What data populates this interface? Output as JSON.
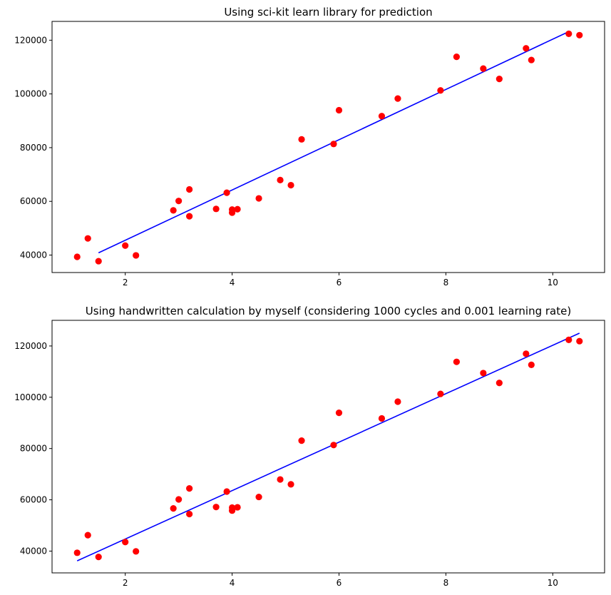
{
  "chart_data": [
    {
      "type": "scatter",
      "title": "Using sci-kit learn library for prediction",
      "xlabel": "",
      "ylabel": "",
      "xlim": [
        0.63,
        10.97
      ],
      "ylim": [
        33500,
        127000
      ],
      "xticks": [
        2,
        4,
        6,
        8,
        10
      ],
      "yticks": [
        40000,
        60000,
        80000,
        100000,
        120000
      ],
      "grid": false,
      "points_color": "#ff0000",
      "line_color": "#0000ff",
      "points": {
        "x": [
          1.1,
          1.3,
          1.5,
          2.0,
          2.2,
          2.9,
          3.0,
          3.2,
          3.2,
          3.7,
          3.9,
          4.0,
          4.0,
          4.1,
          4.5,
          4.9,
          5.1,
          5.3,
          5.9,
          6.0,
          6.8,
          7.1,
          7.9,
          8.2,
          8.7,
          9.0,
          9.5,
          9.6,
          10.3,
          10.5
        ],
        "y": [
          39343,
          46205,
          37731,
          43525,
          39891,
          56642,
          60150,
          54445,
          64445,
          57189,
          63218,
          55794,
          56957,
          57081,
          61111,
          67938,
          66029,
          83088,
          81363,
          93940,
          91738,
          98273,
          101302,
          113812,
          109431,
          105582,
          116969,
          112635,
          122391,
          121872
        ]
      },
      "fit_line": {
        "x": [
          1.5,
          10.3
        ],
        "y": [
          40836,
          123190
        ]
      }
    },
    {
      "type": "scatter",
      "title": "Using handwritten calculation by myself (considering 1000 cycles and 0.001 learning rate)",
      "xlabel": "",
      "ylabel": "",
      "xlim": [
        0.63,
        10.97
      ],
      "ylim": [
        31500,
        130000
      ],
      "xticks": [
        2,
        4,
        6,
        8,
        10
      ],
      "yticks": [
        40000,
        60000,
        80000,
        100000,
        120000
      ],
      "grid": false,
      "points_color": "#ff0000",
      "line_color": "#0000ff",
      "points": {
        "x": [
          1.1,
          1.3,
          1.5,
          2.0,
          2.2,
          2.9,
          3.0,
          3.2,
          3.2,
          3.7,
          3.9,
          4.0,
          4.0,
          4.1,
          4.5,
          4.9,
          5.1,
          5.3,
          5.9,
          6.0,
          6.8,
          7.1,
          7.9,
          8.2,
          8.7,
          9.0,
          9.5,
          9.6,
          10.3,
          10.5
        ],
        "y": [
          39343,
          46205,
          37731,
          43525,
          39891,
          56642,
          60150,
          54445,
          64445,
          57189,
          63218,
          55794,
          56957,
          57081,
          61111,
          67938,
          66029,
          83088,
          81363,
          93940,
          91738,
          98273,
          101302,
          113812,
          109431,
          105582,
          116969,
          112635,
          122391,
          121872
        ]
      },
      "fit_line": {
        "x": [
          1.1,
          10.5
        ],
        "y": [
          36200,
          125000
        ]
      }
    }
  ]
}
